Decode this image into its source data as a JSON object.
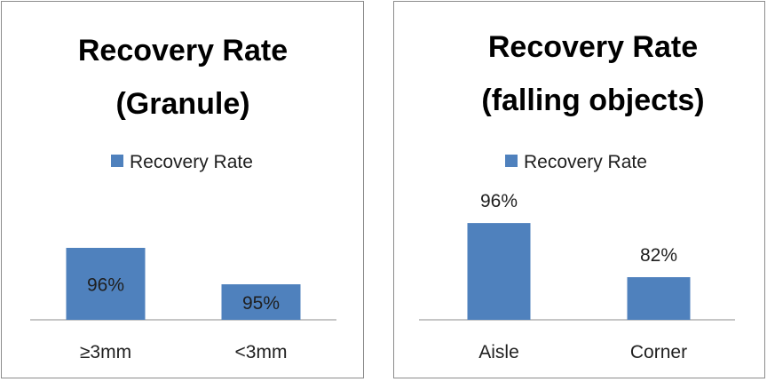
{
  "charts": [
    {
      "title_lines": [
        "Recovery Rate",
        "(Granule)"
      ],
      "legend_label": "Recovery Rate",
      "chart_data": {
        "type": "bar",
        "title": "Recovery Rate (Granule)",
        "categories": [
          "≥3mm",
          "<3mm"
        ],
        "series": [
          {
            "name": "Recovery Rate",
            "values": [
              96,
              95
            ]
          }
        ],
        "value_labels": [
          "96%",
          "95%"
        ],
        "label_position": "inside",
        "color": "#4f81bd",
        "legend_position": "top",
        "grid": false
      }
    },
    {
      "title_lines": [
        "Recovery Rate",
        "(falling objects)"
      ],
      "legend_label": "Recovery Rate",
      "chart_data": {
        "type": "bar",
        "title": "Recovery Rate (falling objects)",
        "categories": [
          "Aisle",
          "Corner"
        ],
        "series": [
          {
            "name": "Recovery Rate",
            "values": [
              96,
              82
            ]
          }
        ],
        "value_labels": [
          "96%",
          "82%"
        ],
        "label_position": "above",
        "color": "#4f81bd",
        "legend_position": "top",
        "grid": false
      }
    }
  ]
}
